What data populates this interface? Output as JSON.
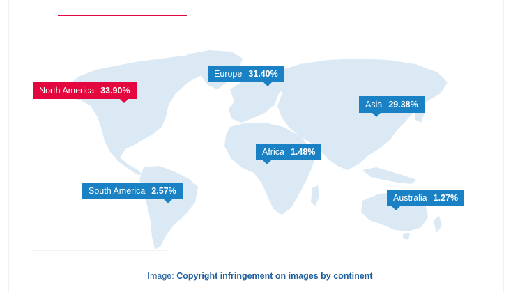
{
  "map": {
    "colors": {
      "land": "#dbe9f5",
      "label_default": "#1a82c4",
      "label_highlight": "#e4063e",
      "accent_rule": "#e4063e"
    },
    "regions": [
      {
        "id": "north-america",
        "name": "North America",
        "share": "33.90%",
        "highlighted": true
      },
      {
        "id": "europe",
        "name": "Europe",
        "share": "31.40%",
        "highlighted": false
      },
      {
        "id": "asia",
        "name": "Asia",
        "share": "29.38%",
        "highlighted": false
      },
      {
        "id": "africa",
        "name": "Africa",
        "share": "1.48%",
        "highlighted": false
      },
      {
        "id": "south-america",
        "name": "South America",
        "share": "2.57%",
        "highlighted": false
      },
      {
        "id": "australia",
        "name": "Australia",
        "share": "1.27%",
        "highlighted": false
      }
    ]
  },
  "caption": {
    "prefix": "Image:",
    "link_text": "Copyright infringement on images by continent"
  }
}
